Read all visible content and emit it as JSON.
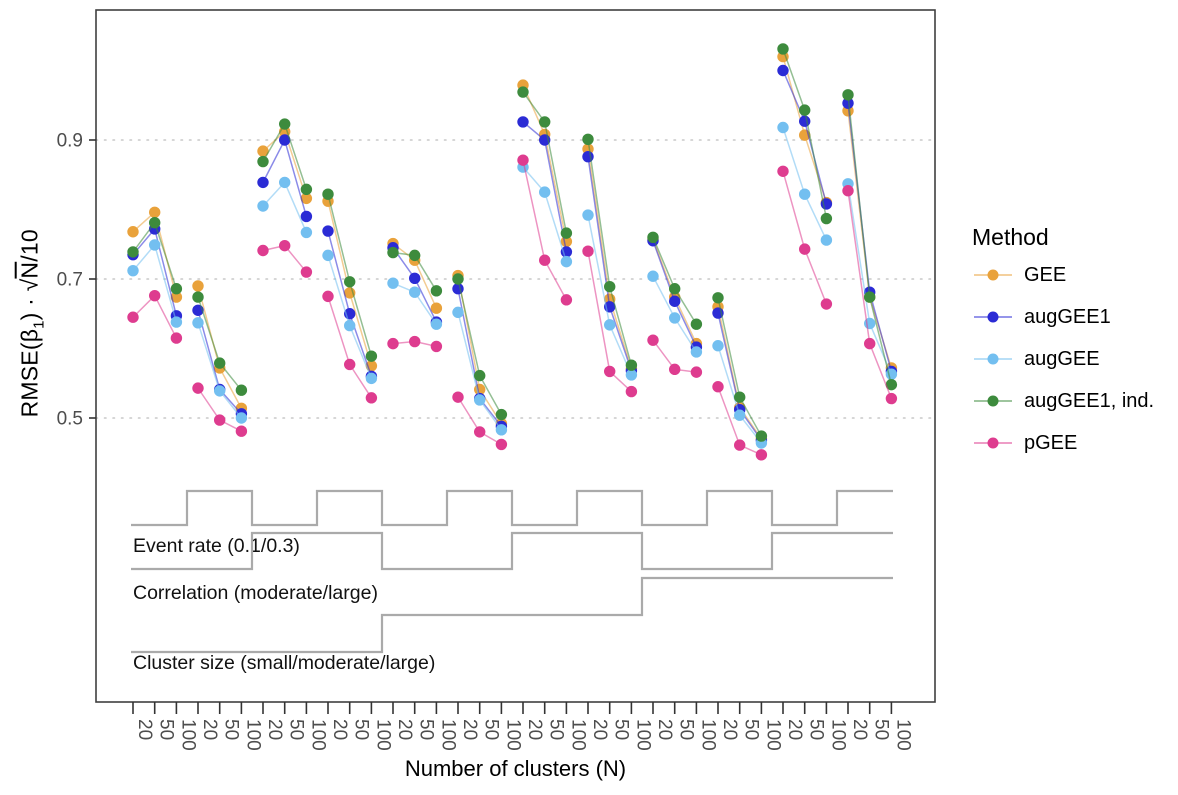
{
  "labels": {
    "xlabel": "Number of clusters (N)",
    "ylabel_prefix": "RMSE(β",
    "ylabel_sub": "1",
    "ylabel_mid": ") · √",
    "ylabel_sqrt_arg": "N",
    "ylabel_suffix": "/10"
  },
  "chart_data": {
    "type": "scatter-line",
    "title": "",
    "xlabel": "Number of clusters (N)",
    "ylabel": "RMSE(β1) · √N / 10",
    "legend_title": "Method",
    "legend_position": "right",
    "grid": "dotted horizontal at y ticks",
    "y_ticks": [
      "0.9",
      "0.7",
      "0.5"
    ],
    "y_gridlines": [
      0.9,
      0.7,
      0.5
    ],
    "ylim_implied": [
      0.08,
      1.09
    ],
    "n_groups": 12,
    "x_group_tick_labels": [
      "20",
      "50",
      "100"
    ],
    "x_axis_note": "12 scenario groups, each with N = 20, 50, 100",
    "series": [
      {
        "name": "GEE",
        "color": "#E9A23B",
        "values": [
          [
            0.768,
            0.796,
            0.674
          ],
          [
            0.69,
            0.572,
            0.514
          ],
          [
            0.884,
            0.912,
            0.816
          ],
          [
            0.812,
            0.68,
            0.575
          ],
          [
            0.751,
            0.727,
            0.658
          ],
          [
            0.705,
            0.541,
            0.492
          ],
          [
            0.979,
            0.908,
            0.754
          ],
          [
            0.887,
            0.671,
            0.571
          ],
          [
            0.757,
            0.674,
            0.607
          ],
          [
            0.66,
            0.515,
            0.47
          ],
          [
            1.02,
            0.907,
            0.81
          ],
          [
            0.942,
            0.674,
            0.572
          ]
        ]
      },
      {
        "name": "augGEE1",
        "color": "#2B2BD5",
        "values": [
          [
            0.735,
            0.772,
            0.647
          ],
          [
            0.655,
            0.541,
            0.506
          ],
          [
            0.839,
            0.9,
            0.79
          ],
          [
            0.769,
            0.65,
            0.56
          ],
          [
            0.745,
            0.701,
            0.638
          ],
          [
            0.686,
            0.528,
            0.488
          ],
          [
            0.926,
            0.9,
            0.739
          ],
          [
            0.876,
            0.66,
            0.568
          ],
          [
            0.755,
            0.668,
            0.602
          ],
          [
            0.651,
            0.512,
            0.468
          ],
          [
            1.0,
            0.927,
            0.808
          ],
          [
            0.953,
            0.681,
            0.567
          ]
        ]
      },
      {
        "name": "augGEE",
        "color": "#73BFF0",
        "values": [
          [
            0.712,
            0.749,
            0.638
          ],
          [
            0.637,
            0.539,
            0.5
          ],
          [
            0.805,
            0.839,
            0.767
          ],
          [
            0.734,
            0.633,
            0.557
          ],
          [
            0.694,
            0.681,
            0.635
          ],
          [
            0.652,
            0.526,
            0.483
          ],
          [
            0.861,
            0.825,
            0.725
          ],
          [
            0.792,
            0.634,
            0.562
          ],
          [
            0.704,
            0.644,
            0.595
          ],
          [
            0.604,
            0.504,
            0.464
          ],
          [
            0.918,
            0.822,
            0.756
          ],
          [
            0.837,
            0.636,
            0.563
          ]
        ]
      },
      {
        "name": "augGEE1, ind.",
        "color": "#3D8B3D",
        "values": [
          [
            0.739,
            0.781,
            0.686
          ],
          [
            0.674,
            0.579,
            0.54
          ],
          [
            0.869,
            0.923,
            0.829
          ],
          [
            0.822,
            0.696,
            0.589
          ],
          [
            0.738,
            0.734,
            0.683
          ],
          [
            0.7,
            0.561,
            0.505
          ],
          [
            0.969,
            0.926,
            0.766
          ],
          [
            0.901,
            0.689,
            0.576
          ],
          [
            0.76,
            0.686,
            0.635
          ],
          [
            0.673,
            0.53,
            0.474
          ],
          [
            1.031,
            0.943,
            0.787
          ],
          [
            0.965,
            0.674,
            0.548
          ]
        ]
      },
      {
        "name": "pGEE",
        "color": "#DE3C8F",
        "values": [
          [
            0.645,
            0.676,
            0.615
          ],
          [
            0.543,
            0.497,
            0.481
          ],
          [
            0.741,
            0.748,
            0.71
          ],
          [
            0.675,
            0.577,
            0.529
          ],
          [
            0.607,
            0.61,
            0.603
          ],
          [
            0.53,
            0.48,
            0.462
          ],
          [
            0.871,
            0.727,
            0.67
          ],
          [
            0.74,
            0.567,
            0.538
          ],
          [
            0.612,
            0.57,
            0.566
          ],
          [
            0.545,
            0.461,
            0.447
          ],
          [
            0.855,
            0.743,
            0.664
          ],
          [
            0.827,
            0.607,
            0.528
          ]
        ]
      }
    ],
    "scenario_strips": [
      {
        "label": "Event rate (0.1/0.3)",
        "levels": [
          "0.1",
          "0.3"
        ],
        "level_by_group": [
          0,
          1,
          0,
          1,
          0,
          1,
          0,
          1,
          0,
          1,
          0,
          1
        ]
      },
      {
        "label": "Correlation (moderate/large)",
        "levels": [
          "moderate",
          "large"
        ],
        "level_by_group": [
          0,
          0,
          1,
          1,
          0,
          0,
          1,
          1,
          0,
          0,
          1,
          1
        ]
      },
      {
        "label": "Cluster size (small/moderate/large)",
        "levels": [
          "small",
          "moderate",
          "large"
        ],
        "level_by_group": [
          0,
          0,
          0,
          0,
          1,
          1,
          1,
          1,
          2,
          2,
          2,
          2
        ]
      }
    ]
  }
}
